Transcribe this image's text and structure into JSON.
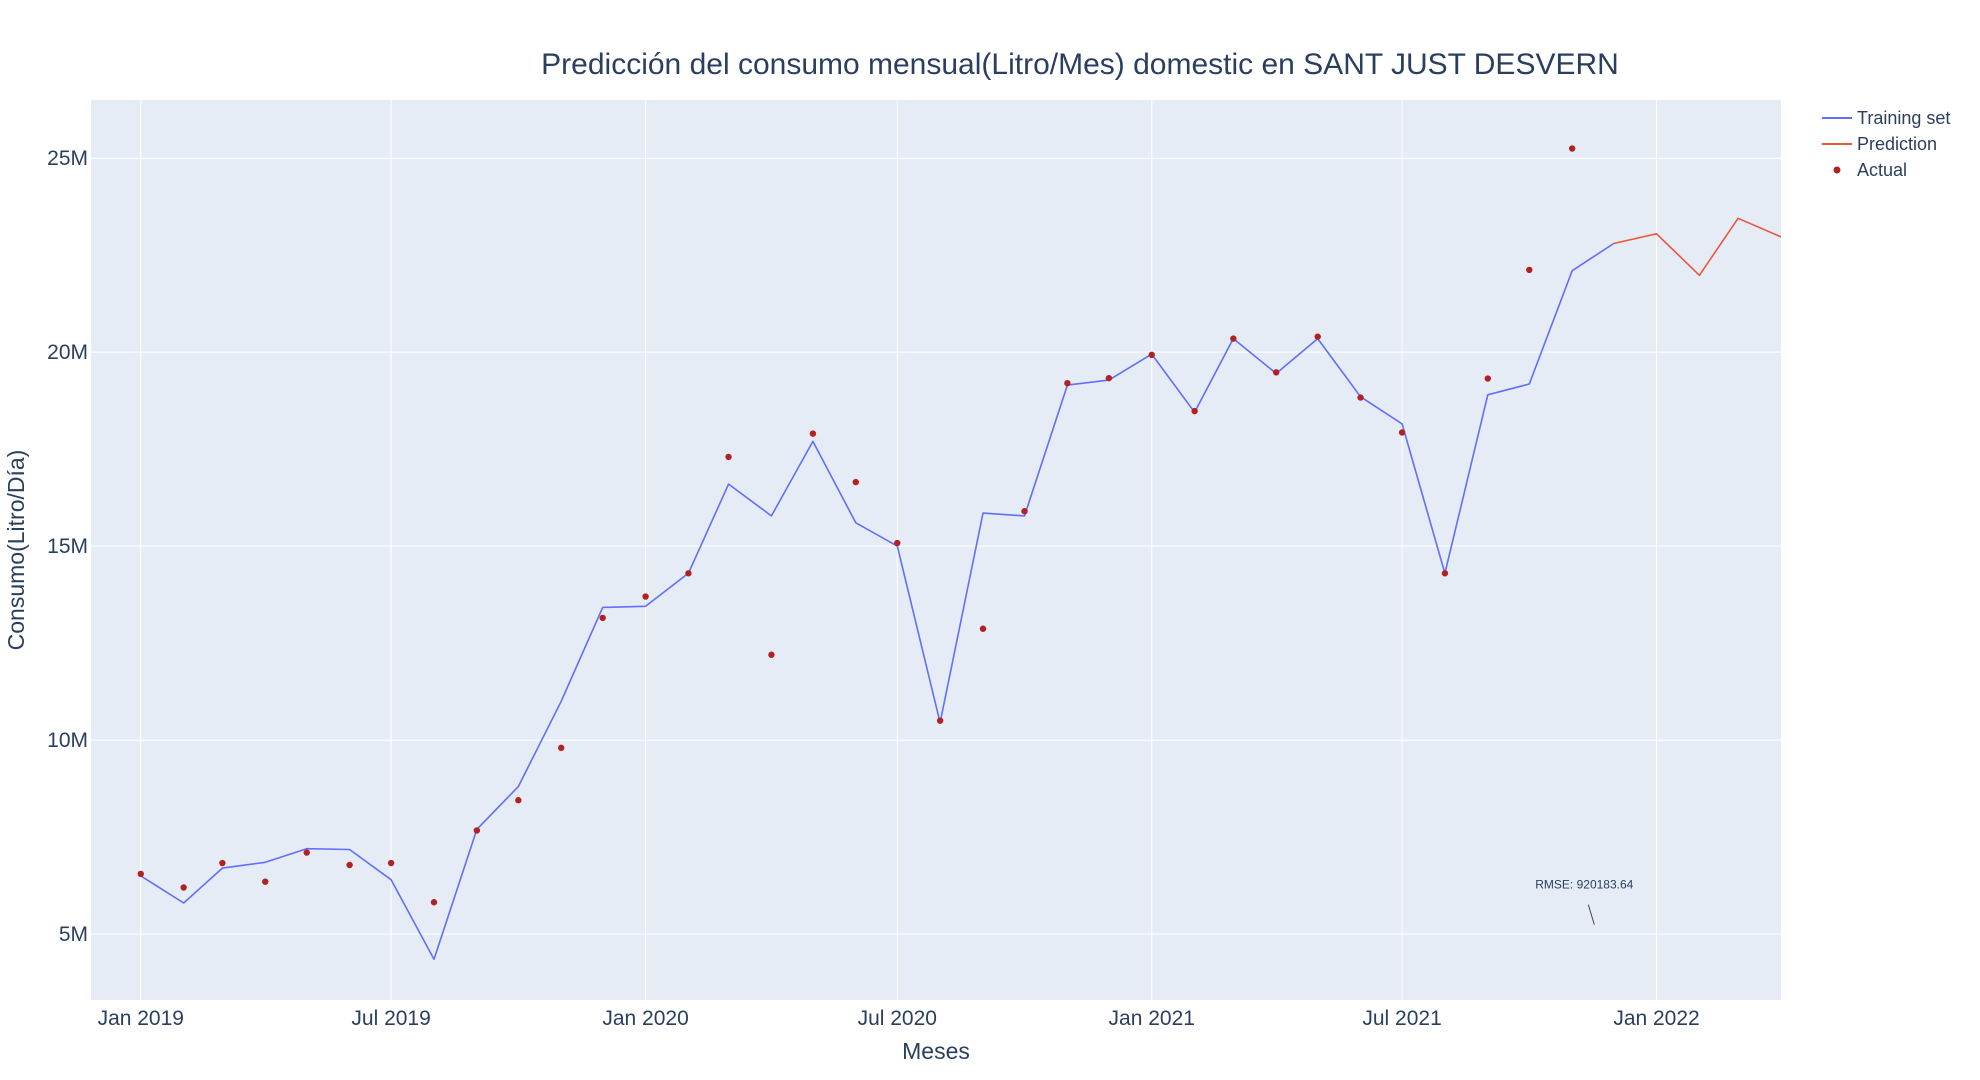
{
  "chart_data": {
    "type": "line",
    "title": "Predicción del consumo mensual(Litro/Mes) domestic en SANT JUST DESVERN",
    "xlabel": "Meses",
    "ylabel": "Consumo(Litro/Día)",
    "x_range": [
      "2018-11-26",
      "2022-04-01"
    ],
    "ylim": [
      3300000,
      26500000
    ],
    "x_ticks": [
      {
        "date": "2019-01-01",
        "label": "Jan 2019"
      },
      {
        "date": "2019-07-01",
        "label": "Jul 2019"
      },
      {
        "date": "2020-01-01",
        "label": "Jan 2020"
      },
      {
        "date": "2020-07-01",
        "label": "Jul 2020"
      },
      {
        "date": "2021-01-01",
        "label": "Jan 2021"
      },
      {
        "date": "2021-07-01",
        "label": "Jul 2021"
      },
      {
        "date": "2022-01-01",
        "label": "Jan 2022"
      }
    ],
    "y_ticks": [
      {
        "value": 5000000,
        "label": "5M"
      },
      {
        "value": 10000000,
        "label": "10M"
      },
      {
        "value": 15000000,
        "label": "15M"
      },
      {
        "value": 20000000,
        "label": "20M"
      },
      {
        "value": 25000000,
        "label": "25M"
      }
    ],
    "grid": true,
    "legend_position": "top-right",
    "series": [
      {
        "name": "Training set",
        "mode": "lines",
        "color": "#636efa",
        "points": [
          [
            "2019-01-01",
            6500000
          ],
          [
            "2019-02-01",
            5800000
          ],
          [
            "2019-03-01",
            6700000
          ],
          [
            "2019-04-01",
            6850000
          ],
          [
            "2019-05-01",
            7200000
          ],
          [
            "2019-06-01",
            7180000
          ],
          [
            "2019-07-01",
            6400000
          ],
          [
            "2019-08-01",
            4350000
          ],
          [
            "2019-09-01",
            7700000
          ],
          [
            "2019-10-01",
            8800000
          ],
          [
            "2019-11-01",
            11000000
          ],
          [
            "2019-12-01",
            13420000
          ],
          [
            "2020-01-01",
            13450000
          ],
          [
            "2020-02-01",
            14300000
          ],
          [
            "2020-03-01",
            16600000
          ],
          [
            "2020-04-01",
            15780000
          ],
          [
            "2020-05-01",
            17700000
          ],
          [
            "2020-06-01",
            15600000
          ],
          [
            "2020-07-01",
            15000000
          ],
          [
            "2020-08-01",
            10450000
          ],
          [
            "2020-09-01",
            15850000
          ],
          [
            "2020-10-01",
            15780000
          ],
          [
            "2020-11-01",
            19150000
          ],
          [
            "2020-12-01",
            19280000
          ],
          [
            "2021-01-01",
            19950000
          ],
          [
            "2021-02-01",
            18450000
          ],
          [
            "2021-03-01",
            20350000
          ],
          [
            "2021-04-01",
            19450000
          ],
          [
            "2021-05-01",
            20350000
          ],
          [
            "2021-06-01",
            18850000
          ],
          [
            "2021-07-01",
            18150000
          ],
          [
            "2021-08-01",
            14300000
          ],
          [
            "2021-09-01",
            18900000
          ],
          [
            "2021-10-01",
            19180000
          ],
          [
            "2021-11-01",
            22100000
          ],
          [
            "2021-12-01",
            22800000
          ]
        ]
      },
      {
        "name": "Prediction",
        "mode": "lines",
        "color": "#ef553b",
        "points": [
          [
            "2021-12-01",
            22800000
          ],
          [
            "2022-01-01",
            23050000
          ],
          [
            "2022-02-01",
            21980000
          ],
          [
            "2022-03-01",
            23450000
          ],
          [
            "2022-04-01",
            22970000
          ]
        ]
      },
      {
        "name": "Actual",
        "mode": "markers",
        "color": "#b22222",
        "points": [
          [
            "2019-01-01",
            6550000
          ],
          [
            "2019-02-01",
            6200000
          ],
          [
            "2019-03-01",
            6830000
          ],
          [
            "2019-04-01",
            6350000
          ],
          [
            "2019-05-01",
            7100000
          ],
          [
            "2019-06-01",
            6780000
          ],
          [
            "2019-07-01",
            6830000
          ],
          [
            "2019-08-01",
            5820000
          ],
          [
            "2019-09-01",
            7670000
          ],
          [
            "2019-10-01",
            8450000
          ],
          [
            "2019-11-01",
            9800000
          ],
          [
            "2019-12-01",
            13150000
          ],
          [
            "2020-01-01",
            13700000
          ],
          [
            "2020-02-01",
            14300000
          ],
          [
            "2020-03-01",
            17300000
          ],
          [
            "2020-04-01",
            12200000
          ],
          [
            "2020-05-01",
            17900000
          ],
          [
            "2020-06-01",
            16650000
          ],
          [
            "2020-07-01",
            15080000
          ],
          [
            "2020-08-01",
            10500000
          ],
          [
            "2020-09-01",
            12870000
          ],
          [
            "2020-10-01",
            15900000
          ],
          [
            "2020-11-01",
            19200000
          ],
          [
            "2020-12-01",
            19330000
          ],
          [
            "2021-01-01",
            19930000
          ],
          [
            "2021-02-01",
            18480000
          ],
          [
            "2021-03-01",
            20350000
          ],
          [
            "2021-04-01",
            19480000
          ],
          [
            "2021-05-01",
            20400000
          ],
          [
            "2021-06-01",
            18830000
          ],
          [
            "2021-07-01",
            17930000
          ],
          [
            "2021-08-01",
            14300000
          ],
          [
            "2021-09-01",
            19320000
          ],
          [
            "2021-10-01",
            22120000
          ],
          [
            "2021-11-01",
            25250000
          ]
        ]
      }
    ],
    "annotations": [
      {
        "text": "RMSE: 920183.64",
        "date": "2021-11-17",
        "value": 5500000
      }
    ]
  }
}
